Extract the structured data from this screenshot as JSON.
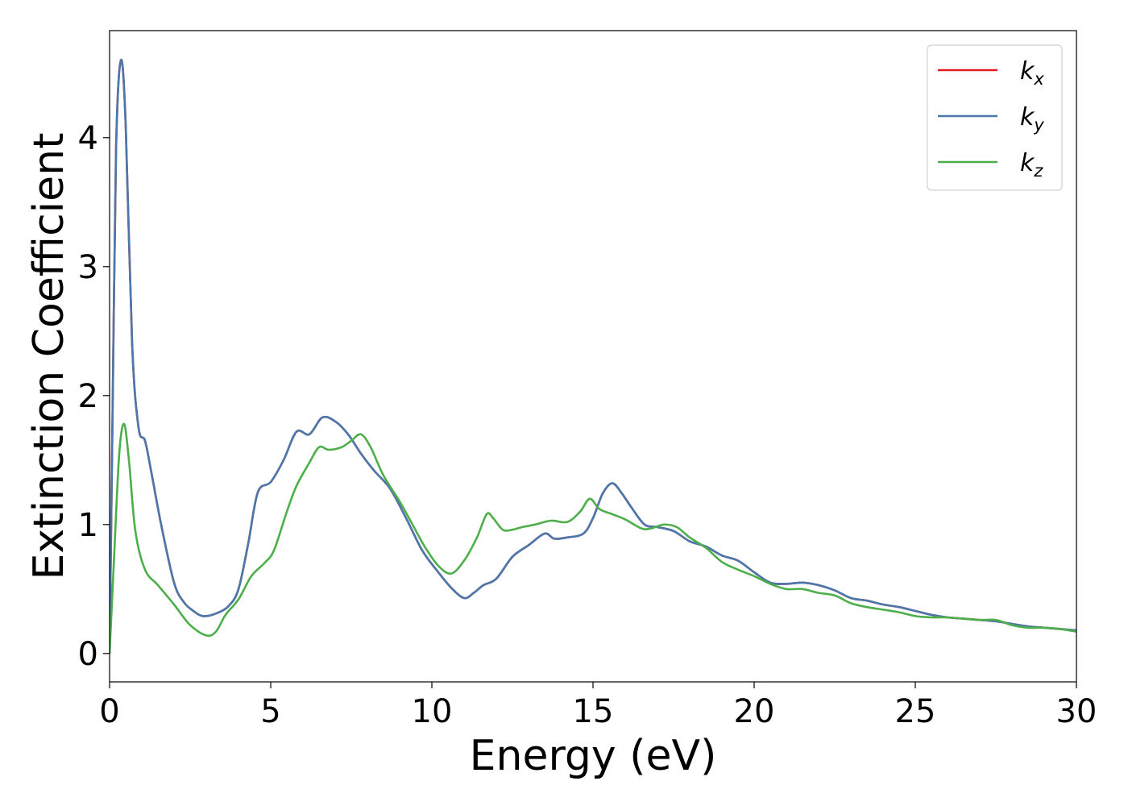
{
  "chart_data": {
    "type": "line",
    "title": "",
    "xlabel": "Energy (eV)",
    "ylabel": "Extinction Coefficient",
    "xlim": [
      0,
      30
    ],
    "ylim": [
      -0.22,
      4.83
    ],
    "xticks": [
      0,
      5,
      10,
      15,
      20,
      25,
      30
    ],
    "yticks": [
      0,
      1,
      2,
      3,
      4
    ],
    "grid": false,
    "legend_position": "top-right",
    "series": [
      {
        "name": "k",
        "subscript": "x",
        "color": "#e41a1c",
        "points": [
          [
            0,
            0
          ],
          [
            0.1,
            2.0
          ],
          [
            0.2,
            3.9
          ],
          [
            0.35,
            4.6
          ],
          [
            0.5,
            4.1
          ],
          [
            0.7,
            2.4
          ],
          [
            0.9,
            1.75
          ],
          [
            1.1,
            1.65
          ],
          [
            1.3,
            1.4
          ],
          [
            1.6,
            1.0
          ],
          [
            2.0,
            0.55
          ],
          [
            2.3,
            0.4
          ],
          [
            2.6,
            0.33
          ],
          [
            2.9,
            0.29
          ],
          [
            3.3,
            0.31
          ],
          [
            3.7,
            0.37
          ],
          [
            4.0,
            0.5
          ],
          [
            4.3,
            0.85
          ],
          [
            4.6,
            1.25
          ],
          [
            5.0,
            1.33
          ],
          [
            5.4,
            1.5
          ],
          [
            5.8,
            1.72
          ],
          [
            6.2,
            1.7
          ],
          [
            6.6,
            1.83
          ],
          [
            7.0,
            1.8
          ],
          [
            7.4,
            1.7
          ],
          [
            7.8,
            1.55
          ],
          [
            8.2,
            1.42
          ],
          [
            8.7,
            1.28
          ],
          [
            9.2,
            1.05
          ],
          [
            9.7,
            0.8
          ],
          [
            10.2,
            0.63
          ],
          [
            10.6,
            0.51
          ],
          [
            11.0,
            0.43
          ],
          [
            11.3,
            0.47
          ],
          [
            11.6,
            0.53
          ],
          [
            12.0,
            0.58
          ],
          [
            12.5,
            0.75
          ],
          [
            13.0,
            0.84
          ],
          [
            13.5,
            0.93
          ],
          [
            13.8,
            0.89
          ],
          [
            14.2,
            0.9
          ],
          [
            14.7,
            0.93
          ],
          [
            15.0,
            1.05
          ],
          [
            15.3,
            1.24
          ],
          [
            15.6,
            1.32
          ],
          [
            15.9,
            1.24
          ],
          [
            16.2,
            1.13
          ],
          [
            16.6,
            1.0
          ],
          [
            17.0,
            0.98
          ],
          [
            17.5,
            0.95
          ],
          [
            18.0,
            0.87
          ],
          [
            18.5,
            0.83
          ],
          [
            19.0,
            0.76
          ],
          [
            19.5,
            0.72
          ],
          [
            20.0,
            0.63
          ],
          [
            20.5,
            0.55
          ],
          [
            21.0,
            0.54
          ],
          [
            21.5,
            0.55
          ],
          [
            22.0,
            0.53
          ],
          [
            22.5,
            0.49
          ],
          [
            23.0,
            0.43
          ],
          [
            23.5,
            0.41
          ],
          [
            24.0,
            0.38
          ],
          [
            24.5,
            0.36
          ],
          [
            25.0,
            0.33
          ],
          [
            25.5,
            0.3
          ],
          [
            26.0,
            0.28
          ],
          [
            26.5,
            0.27
          ],
          [
            27.0,
            0.26
          ],
          [
            27.5,
            0.25
          ],
          [
            28.0,
            0.23
          ],
          [
            28.5,
            0.21
          ],
          [
            29.0,
            0.2
          ],
          [
            29.5,
            0.19
          ],
          [
            30.0,
            0.18
          ]
        ]
      },
      {
        "name": "k",
        "subscript": "y",
        "color": "#4a78ad",
        "points": [
          [
            0,
            0
          ],
          [
            0.1,
            2.0
          ],
          [
            0.2,
            3.9
          ],
          [
            0.35,
            4.6
          ],
          [
            0.5,
            4.1
          ],
          [
            0.7,
            2.4
          ],
          [
            0.9,
            1.75
          ],
          [
            1.1,
            1.65
          ],
          [
            1.3,
            1.4
          ],
          [
            1.6,
            1.0
          ],
          [
            2.0,
            0.55
          ],
          [
            2.3,
            0.4
          ],
          [
            2.6,
            0.33
          ],
          [
            2.9,
            0.29
          ],
          [
            3.3,
            0.31
          ],
          [
            3.7,
            0.37
          ],
          [
            4.0,
            0.5
          ],
          [
            4.3,
            0.85
          ],
          [
            4.6,
            1.25
          ],
          [
            5.0,
            1.33
          ],
          [
            5.4,
            1.5
          ],
          [
            5.8,
            1.72
          ],
          [
            6.2,
            1.7
          ],
          [
            6.6,
            1.83
          ],
          [
            7.0,
            1.8
          ],
          [
            7.4,
            1.7
          ],
          [
            7.8,
            1.55
          ],
          [
            8.2,
            1.42
          ],
          [
            8.7,
            1.28
          ],
          [
            9.2,
            1.05
          ],
          [
            9.7,
            0.8
          ],
          [
            10.2,
            0.63
          ],
          [
            10.6,
            0.51
          ],
          [
            11.0,
            0.43
          ],
          [
            11.3,
            0.47
          ],
          [
            11.6,
            0.53
          ],
          [
            12.0,
            0.58
          ],
          [
            12.5,
            0.75
          ],
          [
            13.0,
            0.84
          ],
          [
            13.5,
            0.93
          ],
          [
            13.8,
            0.89
          ],
          [
            14.2,
            0.9
          ],
          [
            14.7,
            0.93
          ],
          [
            15.0,
            1.05
          ],
          [
            15.3,
            1.24
          ],
          [
            15.6,
            1.32
          ],
          [
            15.9,
            1.24
          ],
          [
            16.2,
            1.13
          ],
          [
            16.6,
            1.0
          ],
          [
            17.0,
            0.98
          ],
          [
            17.5,
            0.95
          ],
          [
            18.0,
            0.87
          ],
          [
            18.5,
            0.83
          ],
          [
            19.0,
            0.76
          ],
          [
            19.5,
            0.72
          ],
          [
            20.0,
            0.63
          ],
          [
            20.5,
            0.55
          ],
          [
            21.0,
            0.54
          ],
          [
            21.5,
            0.55
          ],
          [
            22.0,
            0.53
          ],
          [
            22.5,
            0.49
          ],
          [
            23.0,
            0.43
          ],
          [
            23.5,
            0.41
          ],
          [
            24.0,
            0.38
          ],
          [
            24.5,
            0.36
          ],
          [
            25.0,
            0.33
          ],
          [
            25.5,
            0.3
          ],
          [
            26.0,
            0.28
          ],
          [
            26.5,
            0.27
          ],
          [
            27.0,
            0.26
          ],
          [
            27.5,
            0.25
          ],
          [
            28.0,
            0.23
          ],
          [
            28.5,
            0.21
          ],
          [
            29.0,
            0.2
          ],
          [
            29.5,
            0.19
          ],
          [
            30.0,
            0.18
          ]
        ]
      },
      {
        "name": "k",
        "subscript": "z",
        "color": "#4daf4a",
        "points": [
          [
            0,
            0
          ],
          [
            0.15,
            0.8
          ],
          [
            0.3,
            1.55
          ],
          [
            0.45,
            1.78
          ],
          [
            0.6,
            1.5
          ],
          [
            0.8,
            0.95
          ],
          [
            1.1,
            0.65
          ],
          [
            1.5,
            0.53
          ],
          [
            2.0,
            0.38
          ],
          [
            2.5,
            0.22
          ],
          [
            3.0,
            0.14
          ],
          [
            3.3,
            0.17
          ],
          [
            3.6,
            0.3
          ],
          [
            4.0,
            0.42
          ],
          [
            4.4,
            0.6
          ],
          [
            4.8,
            0.7
          ],
          [
            5.1,
            0.8
          ],
          [
            5.5,
            1.1
          ],
          [
            5.8,
            1.3
          ],
          [
            6.2,
            1.48
          ],
          [
            6.5,
            1.6
          ],
          [
            6.8,
            1.58
          ],
          [
            7.2,
            1.6
          ],
          [
            7.5,
            1.65
          ],
          [
            7.8,
            1.7
          ],
          [
            8.1,
            1.6
          ],
          [
            8.5,
            1.38
          ],
          [
            9.0,
            1.18
          ],
          [
            9.4,
            1.0
          ],
          [
            9.8,
            0.82
          ],
          [
            10.2,
            0.68
          ],
          [
            10.6,
            0.62
          ],
          [
            11.0,
            0.72
          ],
          [
            11.4,
            0.9
          ],
          [
            11.7,
            1.08
          ],
          [
            11.9,
            1.05
          ],
          [
            12.2,
            0.96
          ],
          [
            12.5,
            0.96
          ],
          [
            12.8,
            0.98
          ],
          [
            13.2,
            1.0
          ],
          [
            13.7,
            1.03
          ],
          [
            14.2,
            1.02
          ],
          [
            14.6,
            1.1
          ],
          [
            14.9,
            1.2
          ],
          [
            15.2,
            1.12
          ],
          [
            15.6,
            1.08
          ],
          [
            16.0,
            1.04
          ],
          [
            16.5,
            0.97
          ],
          [
            16.8,
            0.97
          ],
          [
            17.2,
            1.0
          ],
          [
            17.6,
            0.98
          ],
          [
            18.0,
            0.9
          ],
          [
            18.5,
            0.82
          ],
          [
            19.0,
            0.71
          ],
          [
            19.5,
            0.65
          ],
          [
            20.0,
            0.6
          ],
          [
            20.5,
            0.54
          ],
          [
            21.0,
            0.5
          ],
          [
            21.5,
            0.5
          ],
          [
            22.0,
            0.47
          ],
          [
            22.5,
            0.45
          ],
          [
            23.0,
            0.39
          ],
          [
            23.5,
            0.36
          ],
          [
            24.0,
            0.34
          ],
          [
            24.5,
            0.32
          ],
          [
            25.0,
            0.29
          ],
          [
            25.5,
            0.28
          ],
          [
            26.0,
            0.28
          ],
          [
            26.5,
            0.27
          ],
          [
            27.0,
            0.26
          ],
          [
            27.5,
            0.26
          ],
          [
            28.0,
            0.22
          ],
          [
            28.5,
            0.2
          ],
          [
            29.0,
            0.2
          ],
          [
            29.5,
            0.19
          ],
          [
            30.0,
            0.17
          ]
        ]
      }
    ]
  }
}
